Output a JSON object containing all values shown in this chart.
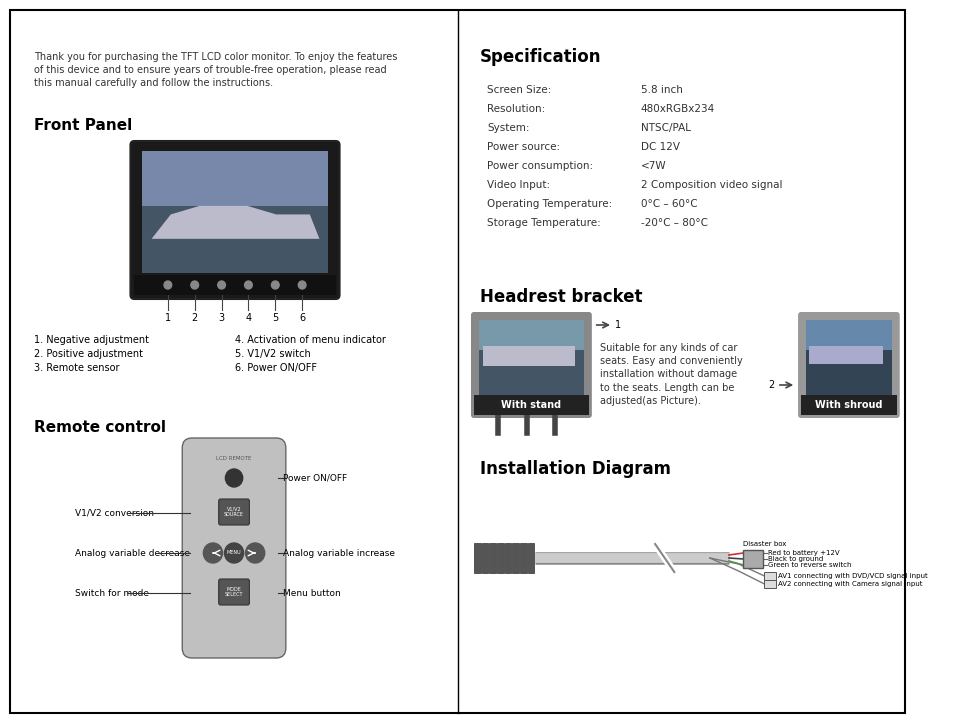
{
  "bg_color": "#ffffff",
  "intro_text": "Thank you for purchasing the TFT LCD color monitor. To enjoy the features\nof this device and to ensure years of trouble-free operation, please read\nthis manual carefully and follow the instructions.",
  "front_panel_title": "Front Panel",
  "front_panel_items_left": [
    "1. Negative adjustment",
    "2. Positive adjustment",
    "3. Remote sensor"
  ],
  "front_panel_items_right": [
    "4. Activation of menu indicator",
    "5. V1/V2 switch",
    "6. Power ON/OFF"
  ],
  "remote_title": "Remote control",
  "remote_labels_left": [
    "V1/V2 conversion",
    "Analog variable decrease",
    "Switch for mode"
  ],
  "remote_labels_right": [
    "Power ON/OFF",
    "Analog variable increase",
    "Menu button"
  ],
  "spec_title": "Specification",
  "spec_labels": [
    "Screen Size:",
    "Resolution:",
    "System:",
    "Power source:",
    "Power consumption:",
    "Video Input:",
    "Operating Temperature:",
    "Storage Temperature:"
  ],
  "spec_values": [
    "5.8 inch",
    "480xRGBx234",
    "NTSC/PAL",
    "DC 12V",
    "<7W",
    "2 Composition video signal",
    "0°C – 60°C",
    "-20°C – 80°C"
  ],
  "headrest_title": "Headrest bracket",
  "headrest_text": "Suitable for any kinds of car\nseats. Easy and conveniently\ninstallation without damage\nto the seats. Length can be\nadjusted(as Picture).",
  "headrest_label1": "With stand",
  "headrest_label2": "With shroud",
  "install_title": "Installation Diagram",
  "disaster_box_label": "Disaster box",
  "install_labels": [
    "Red to battery +12V",
    "Black to ground",
    "Green to reverse switch",
    "AV1 connecting with DVD/VCD signal input",
    "AV2 connecting with Camera signal input"
  ]
}
